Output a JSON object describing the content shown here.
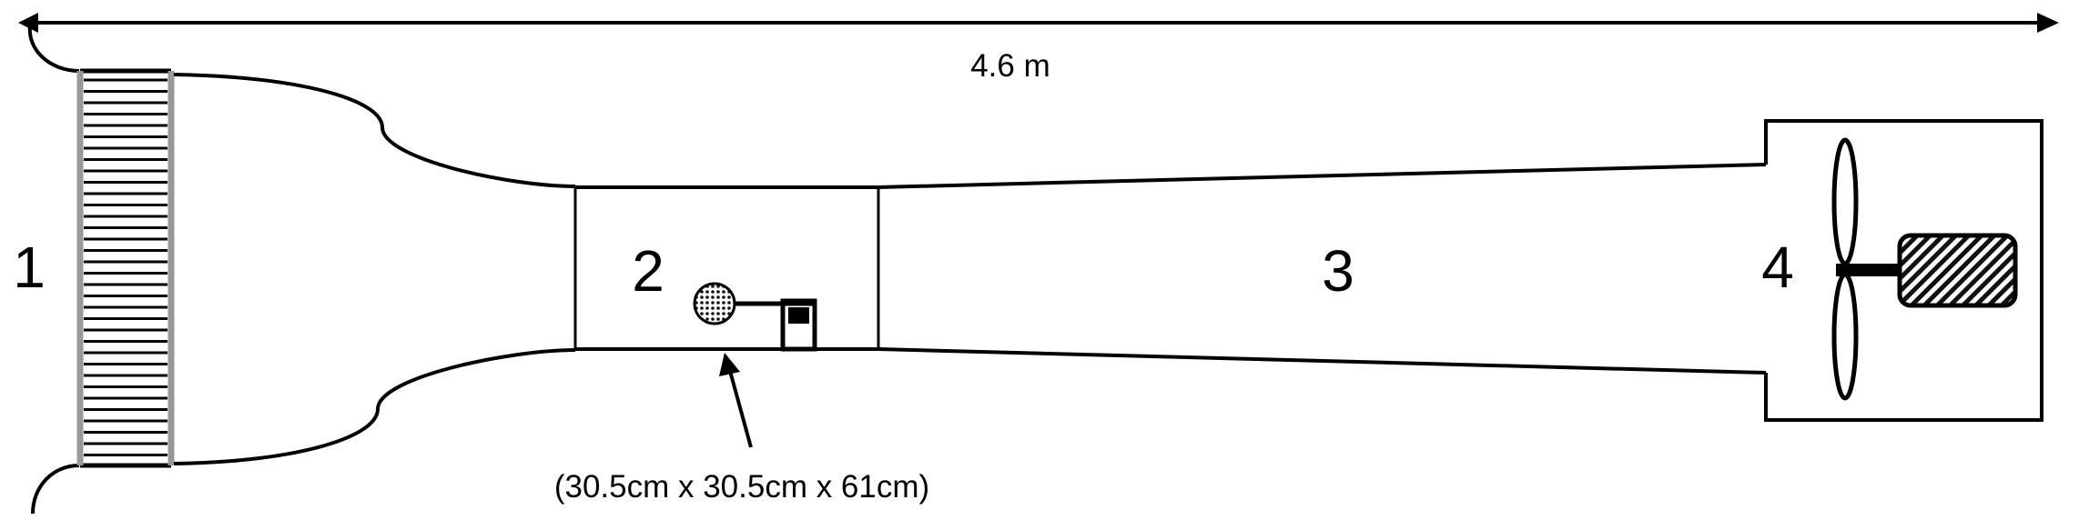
{
  "diagram": {
    "length_label": "4.6 m",
    "section_labels": [
      "1",
      "2",
      "3",
      "4"
    ],
    "test_section_dimensions": "(30.5cm x 30.5cm x 61cm)"
  }
}
